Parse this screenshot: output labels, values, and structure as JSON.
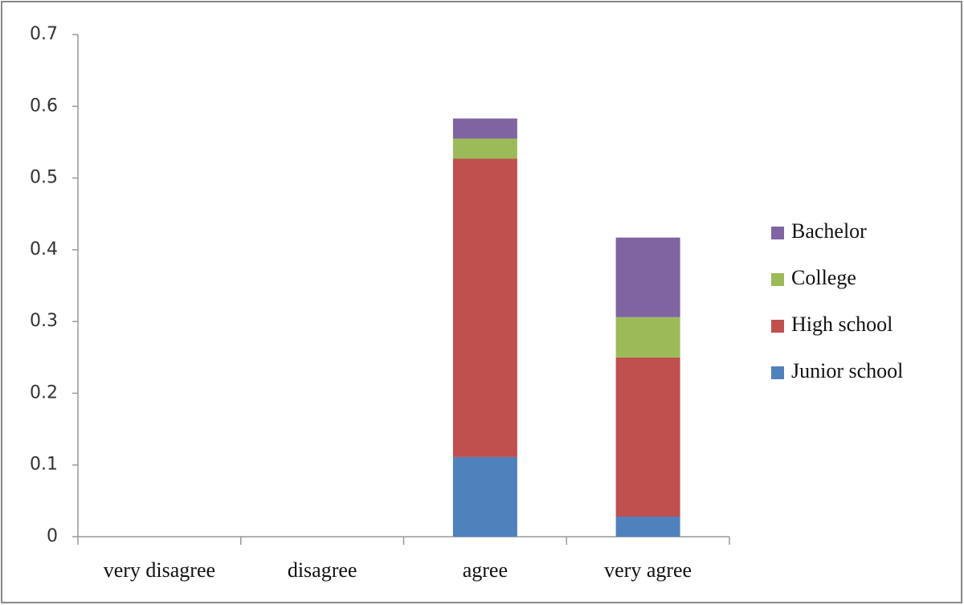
{
  "chart_data": {
    "type": "stacked_bar",
    "categories": [
      "very disagree",
      "disagree",
      "agree",
      "very agree"
    ],
    "series": [
      {
        "name": "Junior school",
        "color": "#4f81bd",
        "values": [
          0,
          0,
          0.111,
          0.028
        ]
      },
      {
        "name": "High school",
        "color": "#c0504d",
        "values": [
          0,
          0,
          0.416,
          0.222
        ]
      },
      {
        "name": "College",
        "color": "#9bbb59",
        "values": [
          0,
          0,
          0.028,
          0.056
        ]
      },
      {
        "name": "Bachelor",
        "color": "#8064a2",
        "values": [
          0,
          0,
          0.028,
          0.111
        ]
      }
    ],
    "ylim": [
      0,
      0.7
    ],
    "yticks": [
      0,
      0.1,
      0.2,
      0.3,
      0.4,
      0.5,
      0.6,
      0.7
    ],
    "grid": false,
    "legend": "right"
  }
}
